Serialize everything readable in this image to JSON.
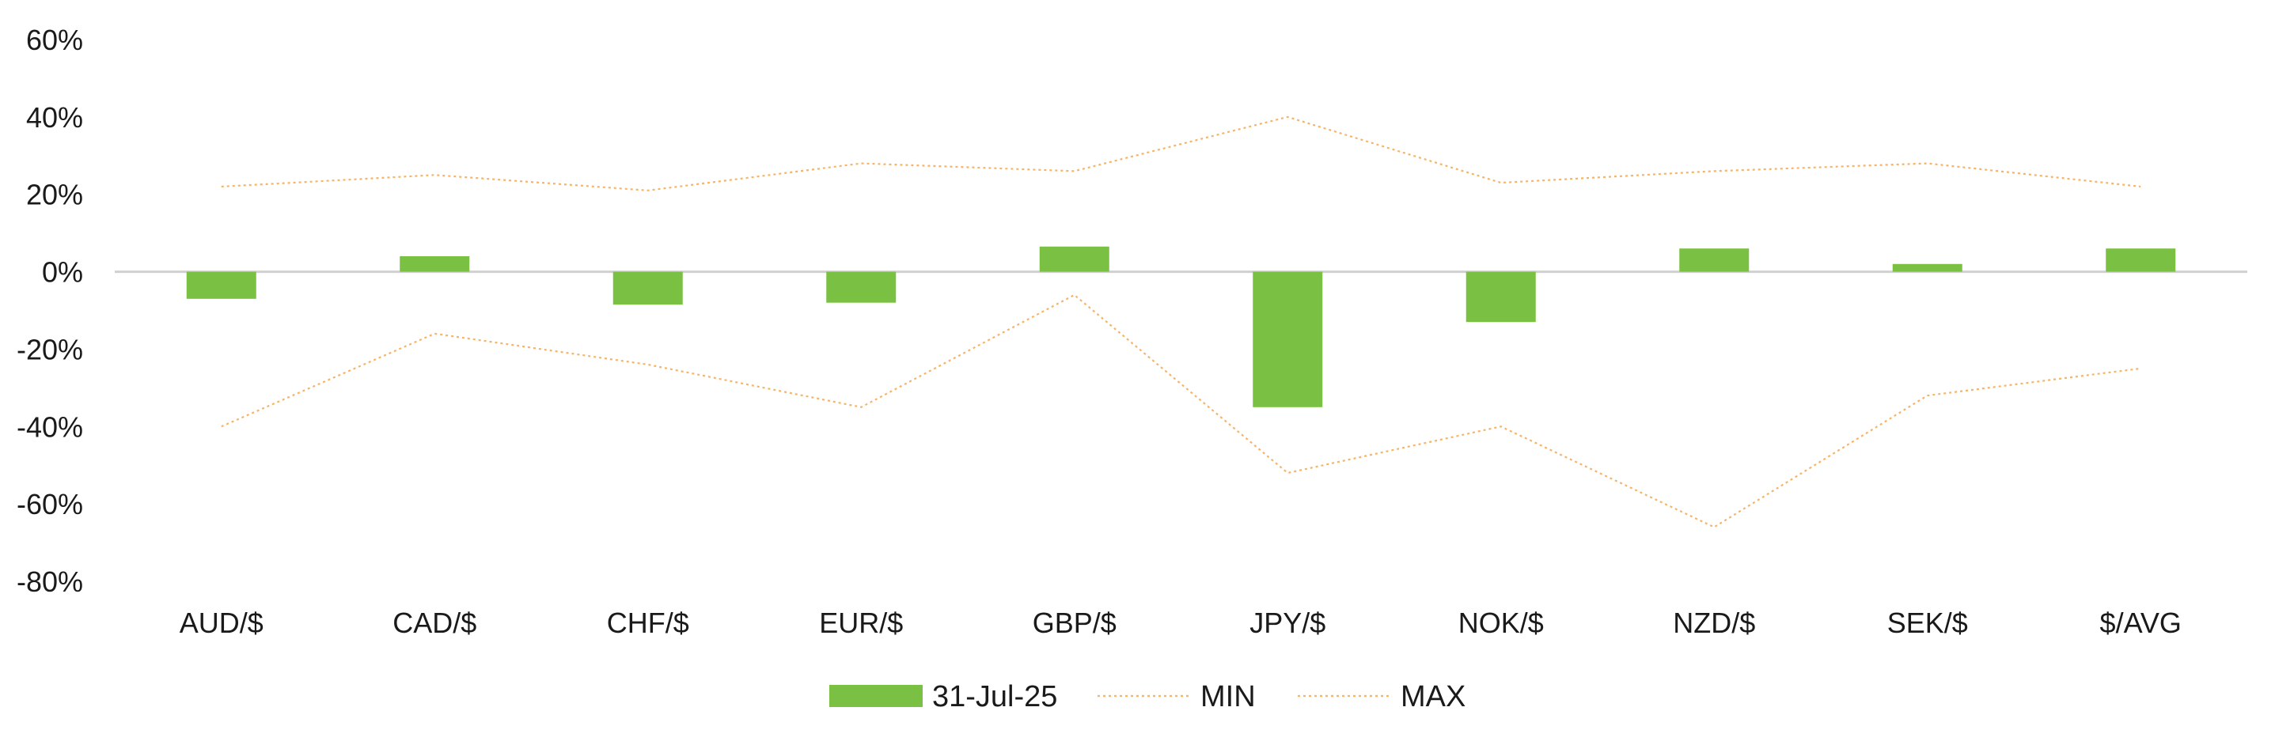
{
  "chart_data": {
    "type": "bar",
    "categories": [
      "AUD/$",
      "CAD/$",
      "CHF/$",
      "EUR/$",
      "GBP/$",
      "JPY/$",
      "NOK/$",
      "NZD/$",
      "SEK/$",
      "$/AVG"
    ],
    "series": [
      {
        "name": "31-Jul-25",
        "kind": "bar",
        "color": "#7ac143",
        "values": [
          -7,
          4,
          -8.5,
          -8,
          6.5,
          -35,
          -13,
          6,
          2,
          6
        ]
      },
      {
        "name": "MIN",
        "kind": "line",
        "style": "dotted",
        "color": "#f5b469",
        "values": [
          -40,
          -16,
          -24,
          -35,
          -6,
          -52,
          -40,
          -66,
          -32,
          -25
        ]
      },
      {
        "name": "MAX",
        "kind": "line",
        "style": "dotted",
        "color": "#f5b469",
        "values": [
          22,
          25,
          21,
          28,
          26,
          40,
          23,
          26,
          28,
          22
        ]
      }
    ],
    "yticks": [
      "60%",
      "40%",
      "20%",
      "0%",
      "-20%",
      "-40%",
      "-60%",
      "-80%"
    ],
    "ylim": [
      -80,
      60
    ],
    "grid": false,
    "zero_line_color": "#d0d0d0",
    "legend_position": "bottom-center",
    "title": "",
    "xlabel": "",
    "ylabel": ""
  }
}
